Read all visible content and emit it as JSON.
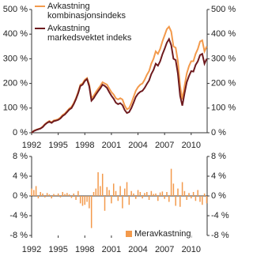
{
  "chart_data": [
    {
      "type": "line",
      "x": [
        1992,
        1992.25,
        1992.5,
        1992.75,
        1993,
        1993.25,
        1993.5,
        1993.75,
        1994,
        1994.25,
        1994.5,
        1994.75,
        1995,
        1995.25,
        1995.5,
        1995.75,
        1996,
        1996.25,
        1996.5,
        1996.75,
        1997,
        1997.25,
        1997.5,
        1997.75,
        1998,
        1998.25,
        1998.5,
        1998.75,
        1999,
        1999.25,
        1999.5,
        1999.75,
        2000,
        2000.25,
        2000.5,
        2000.75,
        2001,
        2001.25,
        2001.5,
        2001.75,
        2002,
        2002.25,
        2002.5,
        2002.75,
        2003,
        2003.25,
        2003.5,
        2003.75,
        2004,
        2004.25,
        2004.5,
        2004.75,
        2005,
        2005.25,
        2005.5,
        2005.75,
        2006,
        2006.25,
        2006.5,
        2006.75,
        2007,
        2007.25,
        2007.5,
        2007.75,
        2008,
        2008.25,
        2008.5,
        2008.75,
        2009,
        2009.25,
        2009.5,
        2009.75,
        2010,
        2010.25,
        2010.5,
        2010.75,
        2011,
        2011.25,
        2011.5,
        2011.75
      ],
      "series": [
        {
          "name": "Avkastning kombinasjonsindeks",
          "color": "#f39a4c",
          "values": [
            0,
            8,
            12,
            15,
            18,
            25,
            35,
            42,
            48,
            42,
            50,
            52,
            55,
            62,
            72,
            78,
            88,
            98,
            105,
            120,
            140,
            165,
            195,
            200,
            215,
            222,
            195,
            140,
            150,
            165,
            178,
            190,
            205,
            200,
            195,
            180,
            165,
            155,
            140,
            135,
            140,
            135,
            110,
            95,
            100,
            120,
            145,
            170,
            185,
            195,
            200,
            215,
            235,
            250,
            280,
            300,
            330,
            320,
            340,
            370,
            395,
            420,
            430,
            410,
            350,
            345,
            290,
            190,
            135,
            190,
            240,
            270,
            290,
            290,
            320,
            340,
            370,
            375,
            330,
            350
          ]
        },
        {
          "name": "Avkastning markedsvektet indeks",
          "color": "#6e1a1e",
          "values": [
            0,
            7,
            11,
            14,
            17,
            23,
            33,
            40,
            45,
            40,
            47,
            49,
            52,
            58,
            68,
            74,
            84,
            94,
            100,
            116,
            136,
            160,
            190,
            195,
            210,
            218,
            188,
            130,
            140,
            155,
            168,
            180,
            195,
            190,
            182,
            165,
            150,
            138,
            122,
            116,
            120,
            112,
            92,
            80,
            84,
            100,
            122,
            145,
            158,
            166,
            170,
            182,
            198,
            212,
            238,
            255,
            280,
            272,
            290,
            318,
            340,
            365,
            380,
            355,
            300,
            295,
            240,
            150,
            110,
            160,
            205,
            230,
            250,
            248,
            275,
            290,
            315,
            320,
            280,
            300
          ]
        }
      ],
      "xlim": [
        1992,
        2011.8
      ],
      "xticks": [
        1992,
        1995,
        1998,
        2001,
        2004,
        2007,
        2010
      ],
      "ylim": [
        0,
        500
      ],
      "yticks": [
        {
          "value": 0,
          "label": "0 %"
        },
        {
          "value": 100,
          "label": "100 %"
        },
        {
          "value": 200,
          "label": "200 %"
        },
        {
          "value": 300,
          "label": "300 %"
        },
        {
          "value": 400,
          "label": "400 %"
        },
        {
          "value": 500,
          "label": "500 %"
        }
      ]
    },
    {
      "type": "bar",
      "name": "Meravkastning",
      "color": "#f39a4c",
      "x": [
        1992,
        1992.25,
        1992.5,
        1992.75,
        1993,
        1993.25,
        1993.5,
        1993.75,
        1994,
        1994.25,
        1994.5,
        1994.75,
        1995,
        1995.25,
        1995.5,
        1995.75,
        1996,
        1996.25,
        1996.5,
        1996.75,
        1997,
        1997.25,
        1997.5,
        1997.75,
        1998,
        1998.25,
        1998.5,
        1998.75,
        1999,
        1999.25,
        1999.5,
        1999.75,
        2000,
        2000.25,
        2000.5,
        2000.75,
        2001,
        2001.25,
        2001.5,
        2001.75,
        2002,
        2002.25,
        2002.5,
        2002.75,
        2003,
        2003.25,
        2003.5,
        2003.75,
        2004,
        2004.25,
        2004.5,
        2004.75,
        2005,
        2005.25,
        2005.5,
        2005.75,
        2006,
        2006.25,
        2006.5,
        2006.75,
        2007,
        2007.25,
        2007.5,
        2007.75,
        2008,
        2008.25,
        2008.5,
        2008.75,
        2009,
        2009.25,
        2009.5,
        2009.75,
        2010,
        2010.25,
        2010.5,
        2010.75,
        2011,
        2011.25,
        2011.5,
        2011.75
      ],
      "values": [
        1.5,
        1.2,
        2.0,
        -0.5,
        0.8,
        0.5,
        -0.3,
        0.6,
        0.3,
        -0.5,
        0.4,
        0.2,
        0.5,
        -0.3,
        0.8,
        0.4,
        0.6,
        0.3,
        -0.4,
        0.5,
        -0.8,
        1.0,
        -1.5,
        -2.0,
        -1.8,
        -1.2,
        -2.5,
        -6.5,
        0.8,
        1.5,
        4.8,
        2.0,
        4.5,
        -3.0,
        1.8,
        1.2,
        -1.5,
        2.5,
        1.0,
        -1.0,
        2.0,
        -2.5,
        1.5,
        2.8,
        -1.8,
        1.0,
        0.5,
        -0.6,
        1.2,
        0.8,
        -0.5,
        0.6,
        0.8,
        -0.8,
        1.0,
        0.4,
        0.5,
        -1.0,
        0.7,
        0.9,
        -0.6,
        0.8,
        -1.2,
        5.5,
        2.5,
        -2.0,
        1.5,
        -2.2,
        2.8,
        1.0,
        -0.8,
        0.6,
        -0.5,
        0.8,
        -1.0,
        1.2,
        -1.2,
        -1.8,
        0.5,
        -1.5
      ],
      "xlim": [
        1992,
        2011.8
      ],
      "xticks": [
        1992,
        1995,
        1998,
        2001,
        2004,
        2007,
        2010
      ],
      "ylim": [
        -8,
        8
      ],
      "yticks": [
        {
          "value": -8,
          "label": "-8 %"
        },
        {
          "value": -4,
          "label": "-4 %"
        },
        {
          "value": 0,
          "label": "0 %"
        },
        {
          "value": 4,
          "label": "4 %"
        },
        {
          "value": 8,
          "label": "8 %"
        }
      ]
    }
  ]
}
